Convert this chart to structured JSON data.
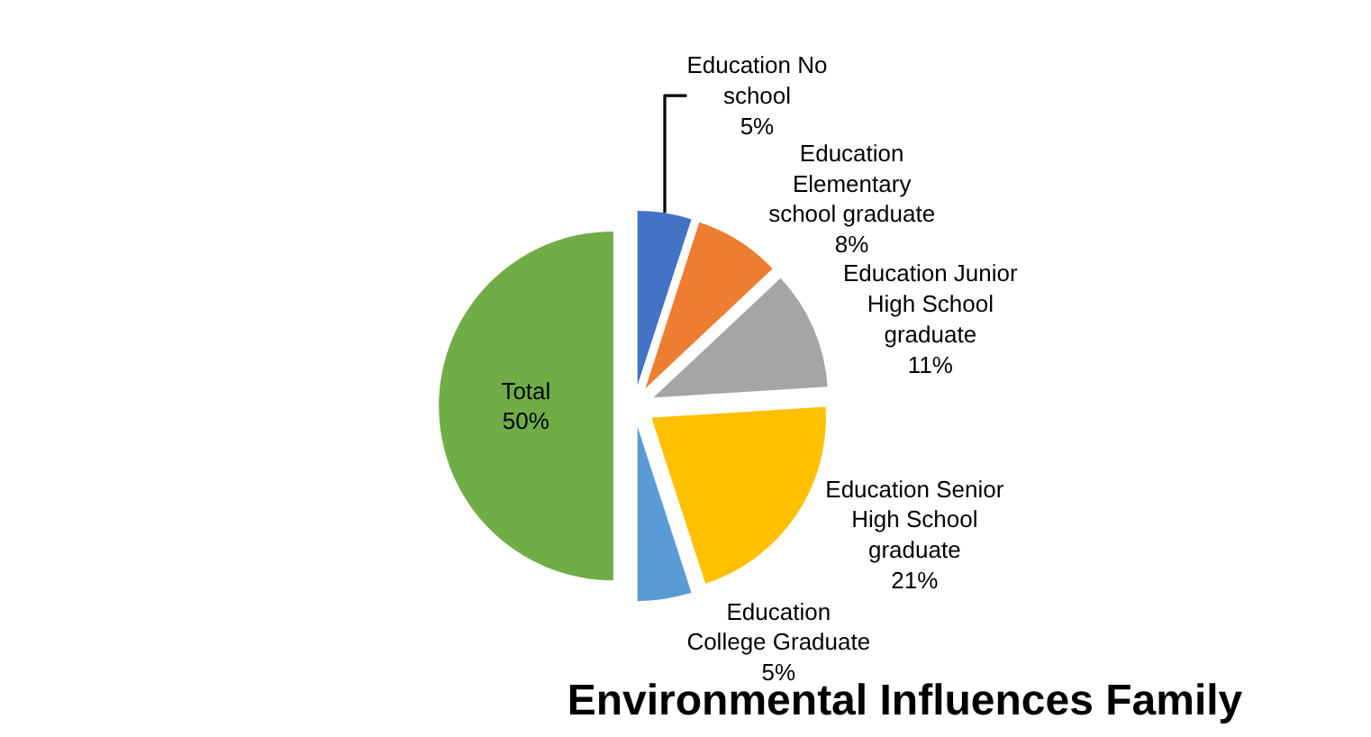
{
  "chart_data": {
    "type": "pie",
    "title": "Environmental Influences Family",
    "categories": [
      "Education No school",
      "Education Elementary school graduate",
      "Education Junior High School graduate",
      "Education Senior High School graduate",
      "Education College Graduate",
      "Total"
    ],
    "values": [
      5,
      8,
      11,
      21,
      5,
      50
    ],
    "value_labels": [
      "5%",
      "8%",
      "11%",
      "21%",
      "5%",
      "50%"
    ],
    "colors": [
      "#4472c4",
      "#ed7d31",
      "#a5a5a5",
      "#ffc000",
      "#5b9bd5",
      "#70ad47"
    ],
    "legend": false
  }
}
